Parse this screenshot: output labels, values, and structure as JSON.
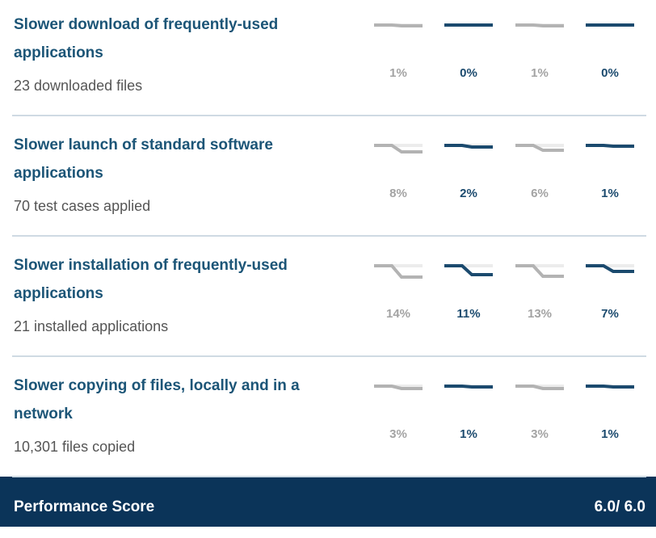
{
  "rows": [
    {
      "title": "Slower download of frequently-used applications",
      "subtitle": "23 downloaded files",
      "metrics": [
        {
          "value": 1,
          "label": "1%"
        },
        {
          "value": 0,
          "label": "0%"
        },
        {
          "value": 1,
          "label": "1%"
        },
        {
          "value": 0,
          "label": "0%"
        }
      ]
    },
    {
      "title": "Slower launch of standard software applications",
      "subtitle": "70 test cases applied",
      "metrics": [
        {
          "value": 8,
          "label": "8%"
        },
        {
          "value": 2,
          "label": "2%"
        },
        {
          "value": 6,
          "label": "6%"
        },
        {
          "value": 1,
          "label": "1%"
        }
      ]
    },
    {
      "title": "Slower installation of frequently-used applications",
      "subtitle": "21 installed applications",
      "metrics": [
        {
          "value": 14,
          "label": "14%"
        },
        {
          "value": 11,
          "label": "11%"
        },
        {
          "value": 13,
          "label": "13%"
        },
        {
          "value": 7,
          "label": "7%"
        }
      ]
    },
    {
      "title": "Slower copying of files, locally and in a network",
      "subtitle": "10,301 files copied",
      "metrics": [
        {
          "value": 3,
          "label": "3%"
        },
        {
          "value": 1,
          "label": "1%"
        },
        {
          "value": 3,
          "label": "3%"
        },
        {
          "value": 1,
          "label": "1%"
        }
      ]
    }
  ],
  "footer": {
    "label": "Performance Score",
    "score": "6.0/ 6.0"
  }
}
